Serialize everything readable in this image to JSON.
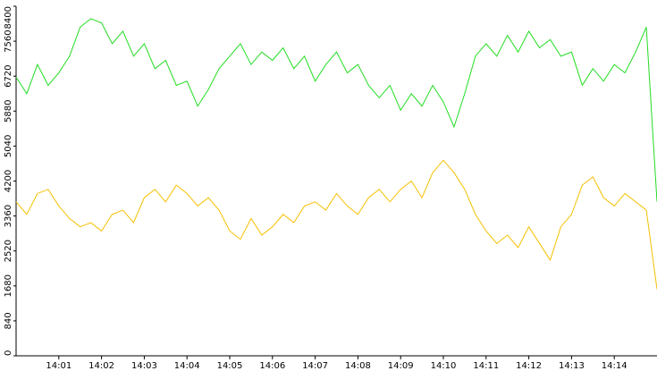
{
  "chart_data": {
    "type": "line",
    "x": [
      840,
      840.25,
      840.5,
      840.75,
      841,
      841.25,
      841.5,
      841.75,
      842,
      842.25,
      842.5,
      842.75,
      843,
      843.25,
      843.5,
      843.75,
      844,
      844.25,
      844.5,
      844.75,
      845,
      845.25,
      845.5,
      845.75,
      846,
      846.25,
      846.5,
      846.75,
      847,
      847.25,
      847.5,
      847.75,
      848,
      848.25,
      848.5,
      848.75,
      849,
      849.25,
      849.5,
      849.75,
      850,
      850.25,
      850.5,
      850.75,
      851,
      851.25,
      851.5,
      851.75,
      852,
      852.25,
      852.5,
      852.75,
      853,
      853.25,
      853.5,
      853.75,
      854,
      854.25,
      854.5,
      854.75,
      855
    ],
    "series": [
      {
        "color": "#22dd22",
        "values": [
          6700,
          6300,
          7000,
          6500,
          6800,
          7200,
          7900,
          8100,
          8000,
          7500,
          7800,
          7200,
          7500,
          6900,
          7100,
          6500,
          6600,
          6000,
          6400,
          6900,
          7200,
          7500,
          7000,
          7300,
          7100,
          7400,
          6900,
          7200,
          6600,
          7000,
          7300,
          6800,
          7000,
          6500,
          6200,
          6500,
          5900,
          6300,
          6000,
          6500,
          6100,
          5500,
          6300,
          7200,
          7500,
          7200,
          7700,
          7300,
          7800,
          7400,
          7600,
          7200,
          7300,
          6500,
          6900,
          6600,
          7000,
          6800,
          7300,
          7900,
          3700
        ]
      },
      {
        "color": "#f5c000",
        "values": [
          3700,
          3400,
          3900,
          4000,
          3600,
          3300,
          3100,
          3200,
          3000,
          3400,
          3500,
          3200,
          3800,
          4000,
          3700,
          4100,
          3900,
          3600,
          3800,
          3500,
          3000,
          2800,
          3300,
          2900,
          3100,
          3400,
          3200,
          3600,
          3700,
          3500,
          3900,
          3600,
          3400,
          3800,
          4000,
          3700,
          4000,
          4200,
          3800,
          4400,
          4700,
          4400,
          4000,
          3400,
          3000,
          2700,
          2900,
          2600,
          3100,
          2700,
          2300,
          3100,
          3400,
          4100,
          4300,
          3800,
          3600,
          3900,
          3700,
          3500,
          1600
        ]
      }
    ],
    "xlim": [
      840,
      855
    ],
    "xticks": [
      {
        "value": 841,
        "label": "14:01"
      },
      {
        "value": 842,
        "label": "14:02"
      },
      {
        "value": 843,
        "label": "14:03"
      },
      {
        "value": 844,
        "label": "14:04"
      },
      {
        "value": 845,
        "label": "14:05"
      },
      {
        "value": 846,
        "label": "14:06"
      },
      {
        "value": 847,
        "label": "14:07"
      },
      {
        "value": 848,
        "label": "14:08"
      },
      {
        "value": 849,
        "label": "14:09"
      },
      {
        "value": 850,
        "label": "14:10"
      },
      {
        "value": 851,
        "label": "14:11"
      },
      {
        "value": 852,
        "label": "14:12"
      },
      {
        "value": 853,
        "label": "14:13"
      },
      {
        "value": 854,
        "label": "14:14"
      }
    ],
    "ylim": [
      0,
      8400
    ],
    "yticks": [
      0,
      840,
      1680,
      2520,
      3360,
      4200,
      5040,
      5880,
      6720,
      7560,
      8400
    ]
  }
}
